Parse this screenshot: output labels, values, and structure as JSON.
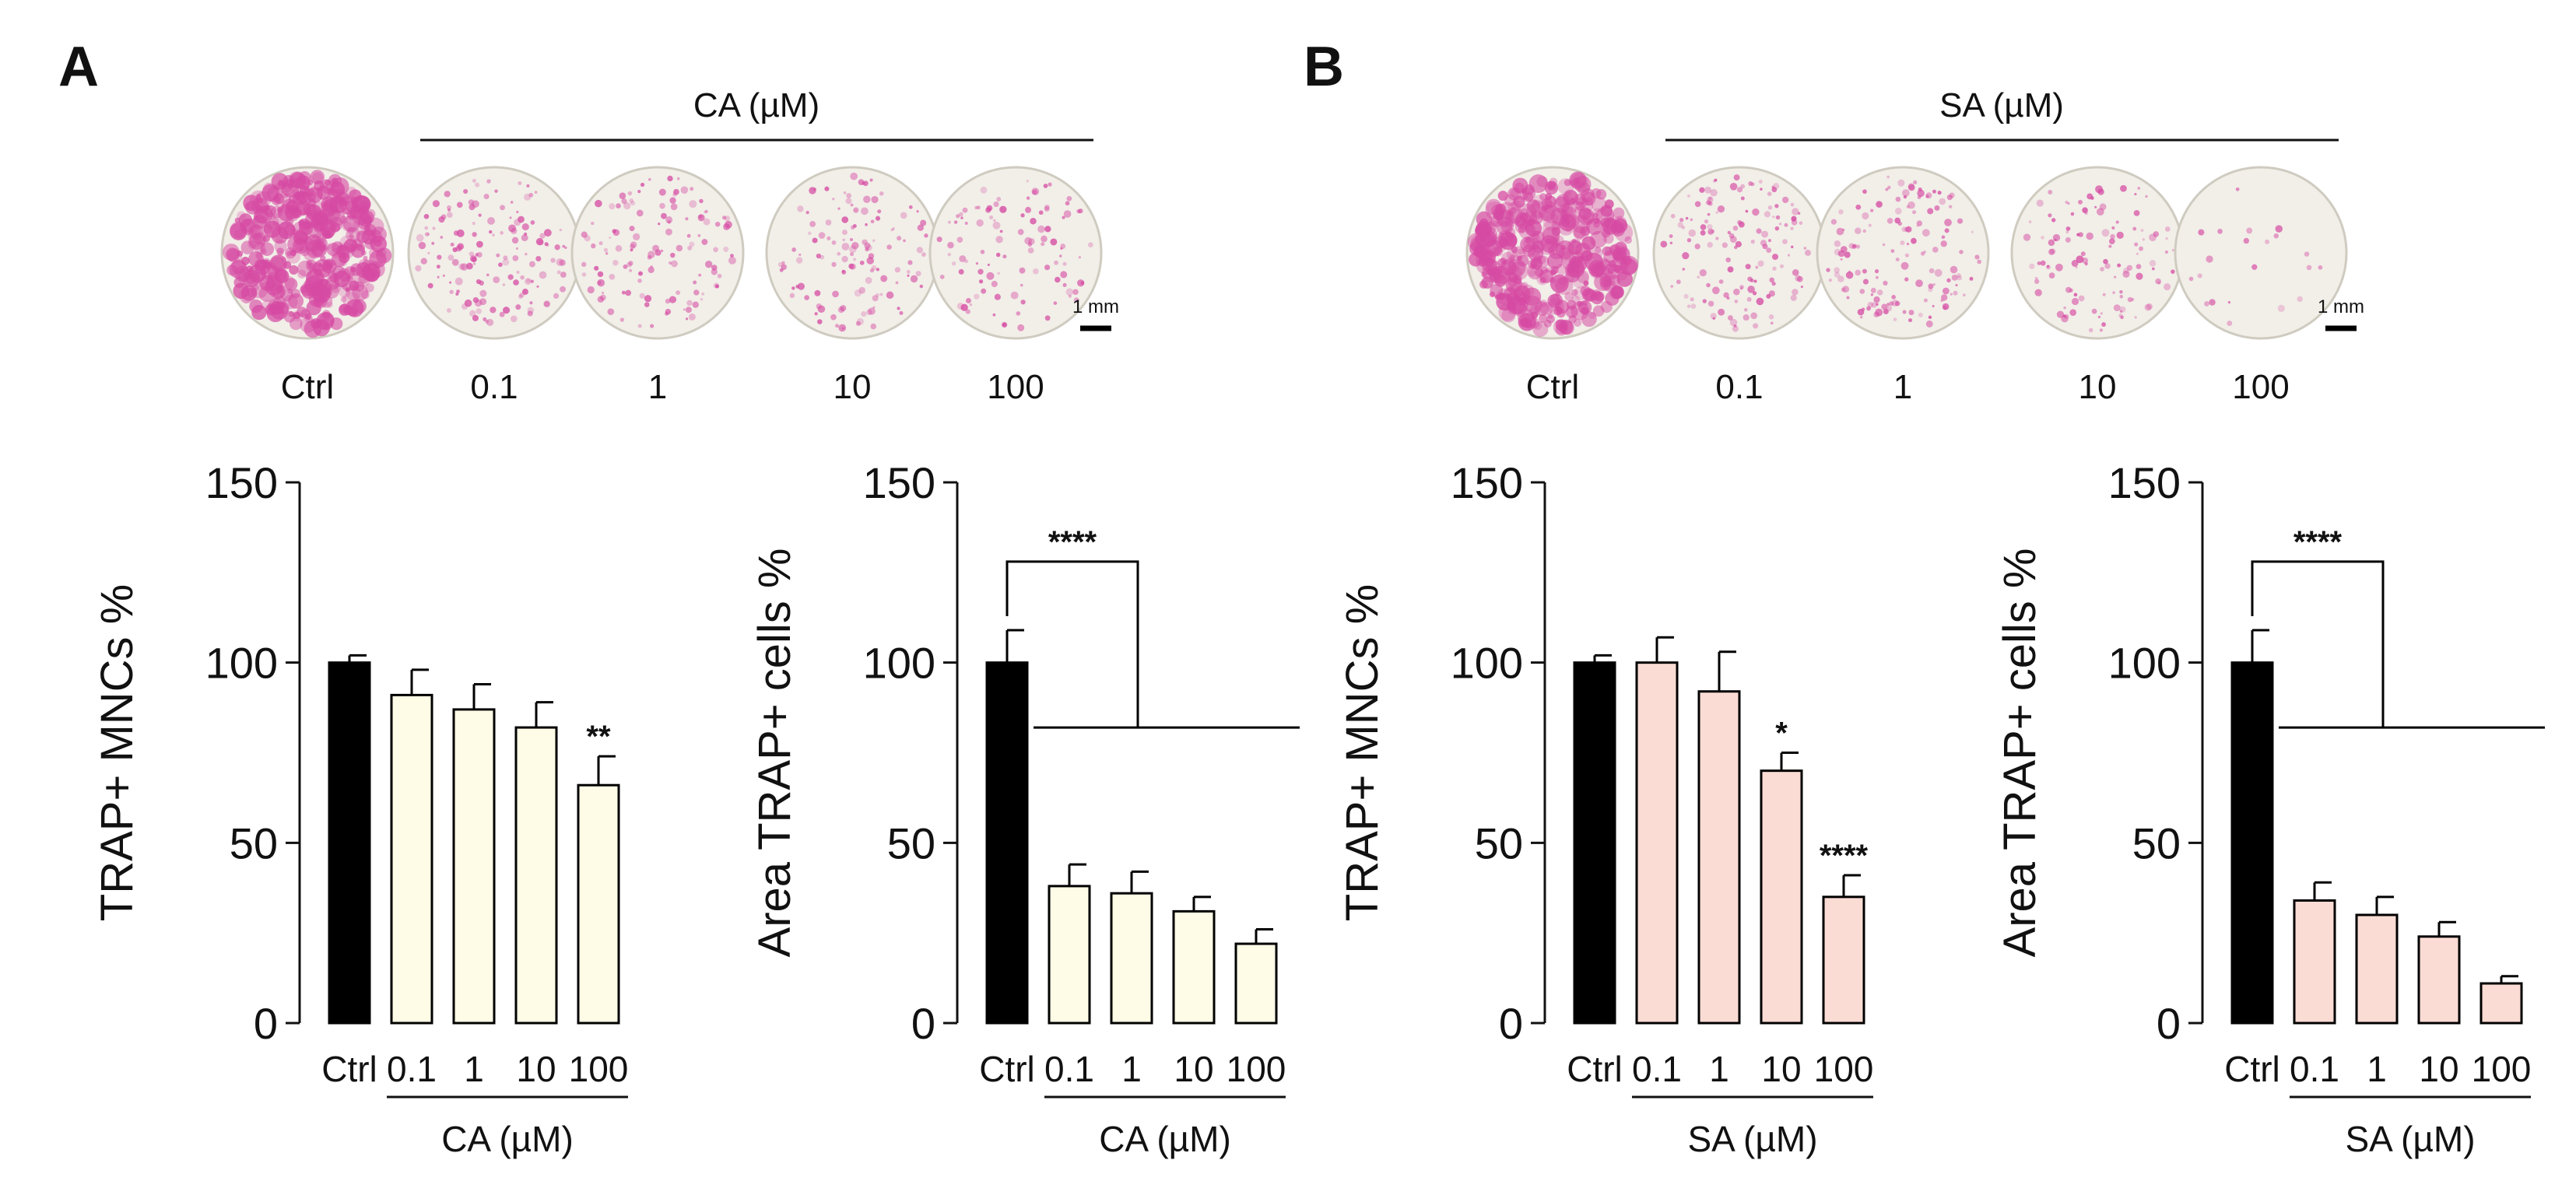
{
  "colors": {
    "ctrl_bar": "#000000",
    "ca_bar": "#fefbe6",
    "sa_bar": "#fbdcd4",
    "well_bg": "#f1efe8",
    "stain": "#d64aa3",
    "axis": "#111111"
  },
  "panels": [
    {
      "label": "A",
      "compound": "CA (µM)",
      "wells": {
        "header": "CA (µM)",
        "labels": [
          "Ctrl",
          "0.1",
          "1",
          "10",
          "100"
        ],
        "stain_density": [
          1.0,
          0.35,
          0.3,
          0.3,
          0.25
        ],
        "scale_bar": "1 mm"
      }
    },
    {
      "label": "B",
      "compound": "SA (µM)",
      "wells": {
        "header": "SA (µM)",
        "labels": [
          "Ctrl",
          "0.1",
          "1",
          "10",
          "100"
        ],
        "stain_density": [
          1.0,
          0.35,
          0.35,
          0.28,
          0.05
        ],
        "scale_bar": "1 mm"
      }
    }
  ],
  "chart_data": [
    {
      "type": "bar",
      "ylabel": "TRAP+ MNCs %",
      "xlabel": "CA (µM)",
      "categories": [
        "Ctrl",
        "0.1",
        "1",
        "10",
        "100"
      ],
      "values": [
        100,
        91,
        87,
        82,
        66
      ],
      "errors": [
        2,
        7,
        7,
        7,
        8
      ],
      "significance": [
        "",
        "",
        "",
        "",
        "**"
      ],
      "bracket": null,
      "ylim": [
        0,
        150
      ],
      "yticks": [
        0,
        50,
        100,
        150
      ],
      "fill": "ca"
    },
    {
      "type": "bar",
      "ylabel": "Area TRAP+ cells %",
      "xlabel": "CA (µM)",
      "categories": [
        "Ctrl",
        "0.1",
        "1",
        "10",
        "100"
      ],
      "values": [
        100,
        38,
        36,
        31,
        22
      ],
      "errors": [
        9,
        6,
        6,
        4,
        4
      ],
      "significance": [
        "",
        "",
        "",
        "",
        ""
      ],
      "bracket": {
        "label": "****",
        "top": 128,
        "bottom": 82
      },
      "ylim": [
        0,
        150
      ],
      "yticks": [
        0,
        50,
        100,
        150
      ],
      "fill": "ca"
    },
    {
      "type": "bar",
      "ylabel": "TRAP+ MNCs %",
      "xlabel": "SA (µM)",
      "categories": [
        "Ctrl",
        "0.1",
        "1",
        "10",
        "100"
      ],
      "values": [
        100,
        100,
        92,
        70,
        35
      ],
      "errors": [
        2,
        7,
        11,
        5,
        6
      ],
      "significance": [
        "",
        "",
        "",
        "*",
        "****"
      ],
      "bracket": null,
      "ylim": [
        0,
        150
      ],
      "yticks": [
        0,
        50,
        100,
        150
      ],
      "fill": "sa"
    },
    {
      "type": "bar",
      "ylabel": "Area TRAP+ cells %",
      "xlabel": "SA (µM)",
      "categories": [
        "Ctrl",
        "0.1",
        "1",
        "10",
        "100"
      ],
      "values": [
        100,
        34,
        30,
        24,
        11
      ],
      "errors": [
        9,
        5,
        5,
        4,
        2
      ],
      "significance": [
        "",
        "",
        "",
        "",
        ""
      ],
      "bracket": {
        "label": "****",
        "top": 128,
        "bottom": 82
      },
      "ylim": [
        0,
        150
      ],
      "yticks": [
        0,
        50,
        100,
        150
      ],
      "fill": "sa"
    }
  ]
}
